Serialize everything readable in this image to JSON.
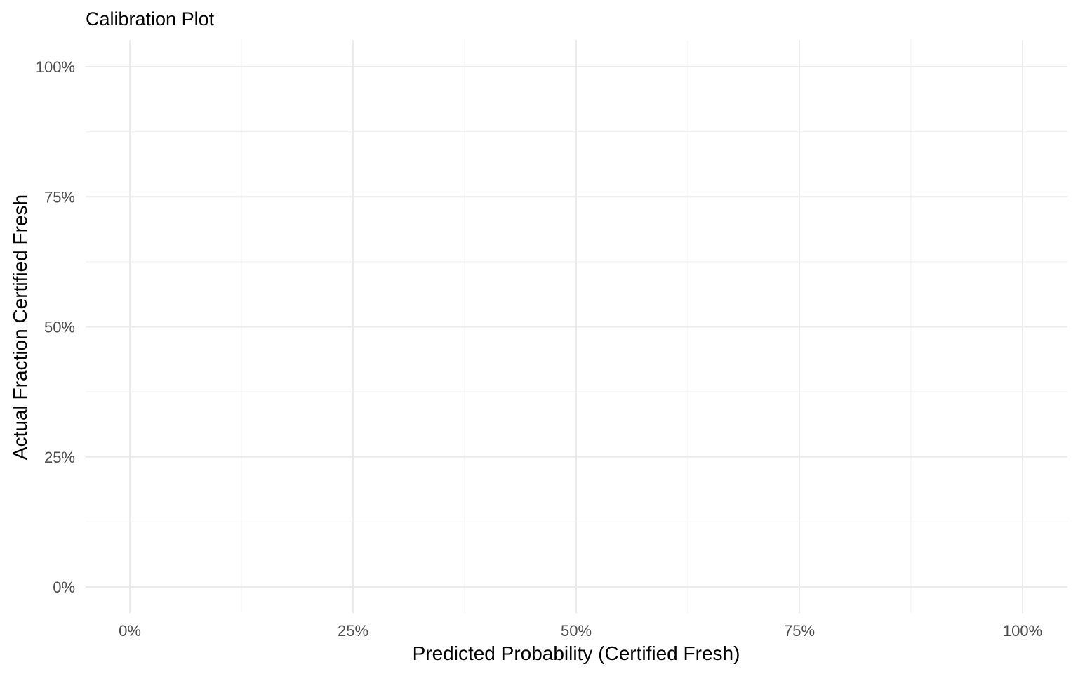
{
  "chart_data": {
    "type": "line",
    "title": "Calibration Plot",
    "xlabel": "Predicted Probability (Certified Fresh)",
    "ylabel": "Actual Fraction Certified Fresh",
    "xlim": [
      0,
      1
    ],
    "ylim": [
      0,
      1
    ],
    "x_ticks": [
      0,
      0.25,
      0.5,
      0.75,
      1
    ],
    "x_tick_labels": [
      "0%",
      "25%",
      "50%",
      "75%",
      "100%"
    ],
    "y_ticks": [
      0,
      0.25,
      0.5,
      0.75,
      1
    ],
    "y_tick_labels": [
      "0%",
      "25%",
      "50%",
      "75%",
      "100%"
    ],
    "grid": true,
    "series": []
  }
}
